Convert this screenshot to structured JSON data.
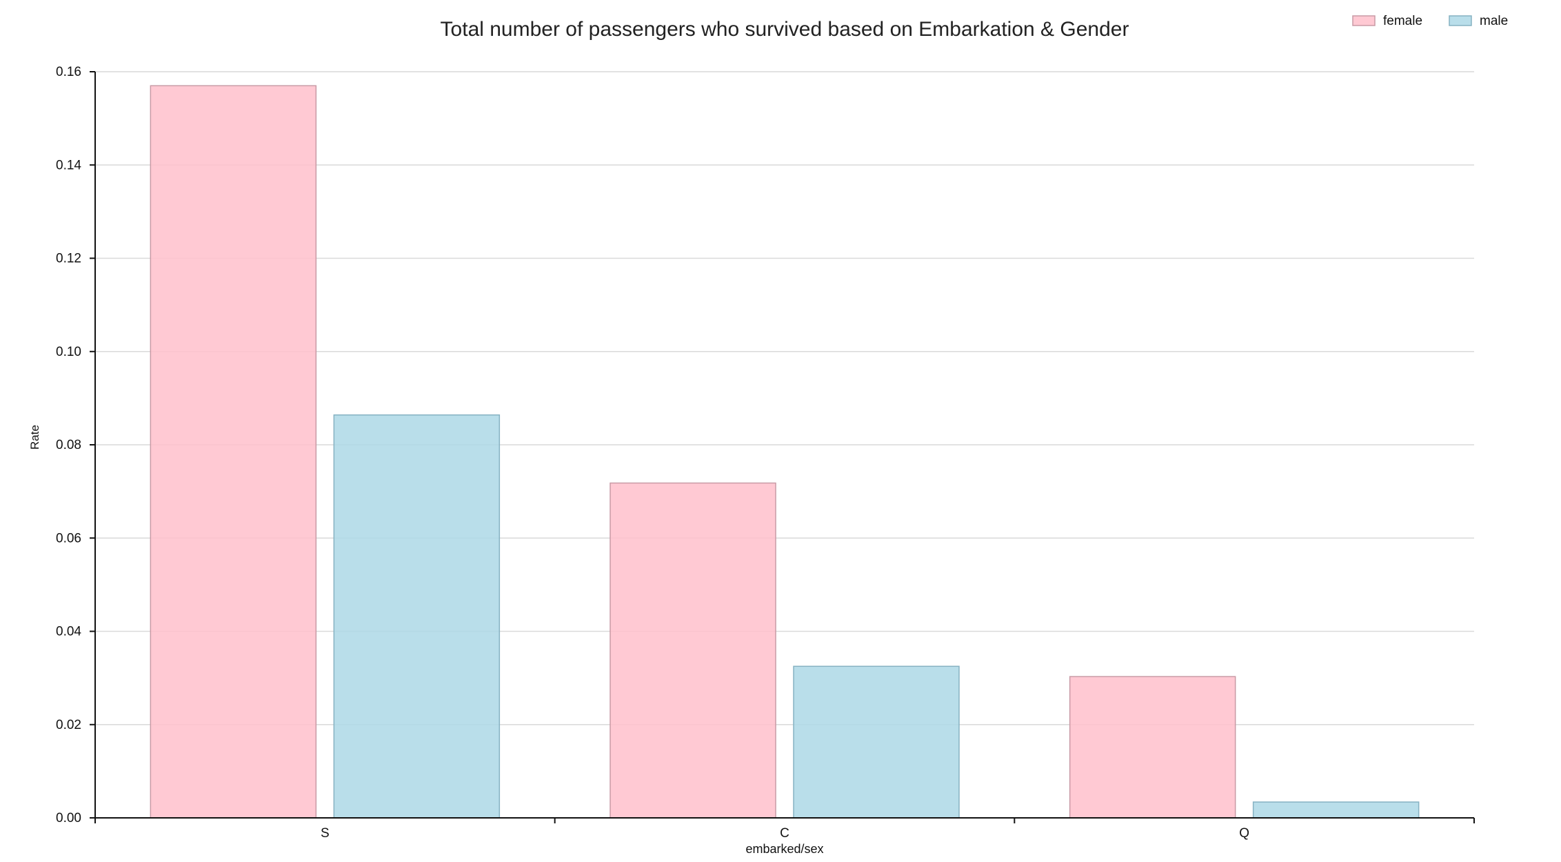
{
  "chart_data": {
    "type": "bar",
    "title": "Total number of passengers who survived based on Embarkation & Gender",
    "xlabel": "embarked/sex",
    "ylabel": "Rate",
    "categories": [
      "S",
      "C",
      "Q"
    ],
    "series": [
      {
        "name": "female",
        "values": [
          0.157,
          0.0718,
          0.0303
        ],
        "color": "#ffc0cb"
      },
      {
        "name": "male",
        "values": [
          0.0864,
          0.0325,
          0.0034
        ],
        "color": "#add8e6"
      }
    ],
    "ylim": [
      0,
      0.16
    ],
    "yticks": [
      "0.00",
      "0.02",
      "0.04",
      "0.06",
      "0.08",
      "0.10",
      "0.12",
      "0.14",
      "0.16"
    ],
    "grid": true,
    "legend_position": "top-right"
  }
}
